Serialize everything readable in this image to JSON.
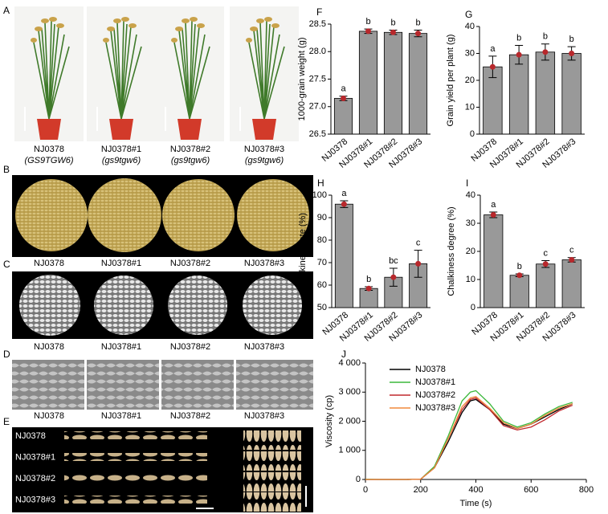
{
  "figure_panels": [
    {
      "panel": "A",
      "labels": [
        "NJ0378",
        "NJ0378#1",
        "NJ0378#2",
        "NJ0378#3"
      ],
      "genotypes": [
        "(GS9TGW6)",
        "(gs9tgw6)",
        "(gs9tgw6)",
        "(gs9tgw6)"
      ]
    },
    {
      "panel": "B",
      "labels": [
        "NJ0378",
        "NJ0378#1",
        "NJ0378#2",
        "NJ0378#3"
      ]
    },
    {
      "panel": "C",
      "labels": [
        "NJ0378",
        "NJ0378#1",
        "NJ0378#2",
        "NJ0378#3"
      ]
    },
    {
      "panel": "D",
      "labels": [
        "NJ0378",
        "NJ0378#1",
        "NJ0378#2",
        "NJ0378#3"
      ]
    },
    {
      "panel": "E",
      "labels": [
        "NJ0378",
        "NJ0378#1",
        "NJ0378#2",
        "NJ0378#3"
      ]
    }
  ],
  "chart_data": [
    {
      "type": "bar",
      "panel": "F",
      "y_label": "1000-grain weight (g)",
      "categories": [
        "NJ0378",
        "NJ0378#1",
        "NJ0378#2",
        "NJ0378#3"
      ],
      "values": [
        27.15,
        28.37,
        28.35,
        28.33
      ],
      "errors": [
        0.04,
        0.04,
        0.04,
        0.06
      ],
      "letters": [
        "a",
        "b",
        "b",
        "b"
      ],
      "color": "#999999",
      "ylim": [
        26.5,
        28.5
      ],
      "yticks": [
        26.5,
        {
          "value": 27,
          "label": "27.0"
        },
        27.5,
        {
          "value": 28,
          "label": "28.0"
        },
        28.5
      ]
    },
    {
      "type": "bar",
      "panel": "G",
      "y_label": "Grain yield per plant (g)",
      "categories": [
        "NJ0378",
        "NJ0378#1",
        "NJ0378#2",
        "NJ0378#3"
      ],
      "values": [
        25,
        29.5,
        30.5,
        30
      ],
      "errors": [
        4,
        3.5,
        3,
        2.5
      ],
      "letters": [
        "a",
        "b",
        "b",
        "b"
      ],
      "color": "#999999",
      "ylim": [
        0,
        40
      ],
      "yticks": [
        0,
        10,
        20,
        30,
        40
      ]
    },
    {
      "type": "bar",
      "panel": "H",
      "y_label": "Chalkiness rate (%)",
      "categories": [
        "NJ0378",
        "NJ0378#1",
        "NJ0378#2",
        "NJ0378#3"
      ],
      "values": [
        96,
        58.5,
        63.5,
        69.5
      ],
      "errors": [
        1.5,
        0.8,
        4,
        6
      ],
      "letters": [
        "a",
        "b",
        "bc",
        "c"
      ],
      "color": "#999999",
      "ylim": [
        50,
        100
      ],
      "yticks": [
        50,
        60,
        70,
        80,
        90,
        100
      ]
    },
    {
      "type": "bar",
      "panel": "I",
      "y_label": "Chalkiness degree (%)",
      "categories": [
        "NJ0378",
        "NJ0378#1",
        "NJ0378#2",
        "NJ0378#3"
      ],
      "values": [
        33,
        11.5,
        15.5,
        17
      ],
      "errors": [
        1,
        0.5,
        1.2,
        0.8
      ],
      "letters": [
        "a",
        "b",
        "c",
        "c"
      ],
      "color": "#999999",
      "ylim": [
        0,
        40
      ],
      "yticks": [
        0,
        10,
        20,
        30,
        40
      ]
    },
    {
      "type": "line",
      "panel": "J",
      "x_label": "Time (s)",
      "y_label": "Viscosity (cp)",
      "x": [
        0,
        50,
        100,
        150,
        200,
        250,
        300,
        350,
        380,
        400,
        450,
        500,
        550,
        600,
        650,
        700,
        750
      ],
      "series": [
        {
          "name": "NJ0378",
          "color": "#000000",
          "values": [
            0,
            0,
            0,
            0,
            10,
            400,
            1300,
            2300,
            2700,
            2750,
            2400,
            1900,
            1750,
            1900,
            2150,
            2400,
            2600
          ]
        },
        {
          "name": "NJ0378#1",
          "color": "#3cb83c",
          "values": [
            10,
            0,
            0,
            0,
            10,
            450,
            1500,
            2700,
            3000,
            3050,
            2600,
            2000,
            1800,
            1950,
            2250,
            2500,
            2650
          ]
        },
        {
          "name": "NJ0378#2",
          "color": "#c0282d",
          "values": [
            0,
            0,
            0,
            0,
            10,
            400,
            1400,
            2400,
            2750,
            2800,
            2400,
            1850,
            1700,
            1800,
            2050,
            2350,
            2550
          ]
        },
        {
          "name": "NJ0378#3",
          "color": "#f08a3c",
          "values": [
            0,
            0,
            0,
            0,
            10,
            400,
            1400,
            2500,
            2800,
            2850,
            2450,
            1950,
            1750,
            1900,
            2200,
            2450,
            2600
          ]
        }
      ],
      "xlim": [
        0,
        800
      ],
      "xticks": [
        0,
        200,
        400,
        600,
        800
      ],
      "ylim": [
        0,
        4000
      ],
      "yticks": [
        0,
        {
          "value": 1000,
          "label": "1 000"
        },
        {
          "value": 2000,
          "label": "2 000"
        },
        {
          "value": 3000,
          "label": "3 000"
        },
        {
          "value": 4000,
          "label": "4 000"
        }
      ],
      "legend": "upper-left"
    }
  ]
}
